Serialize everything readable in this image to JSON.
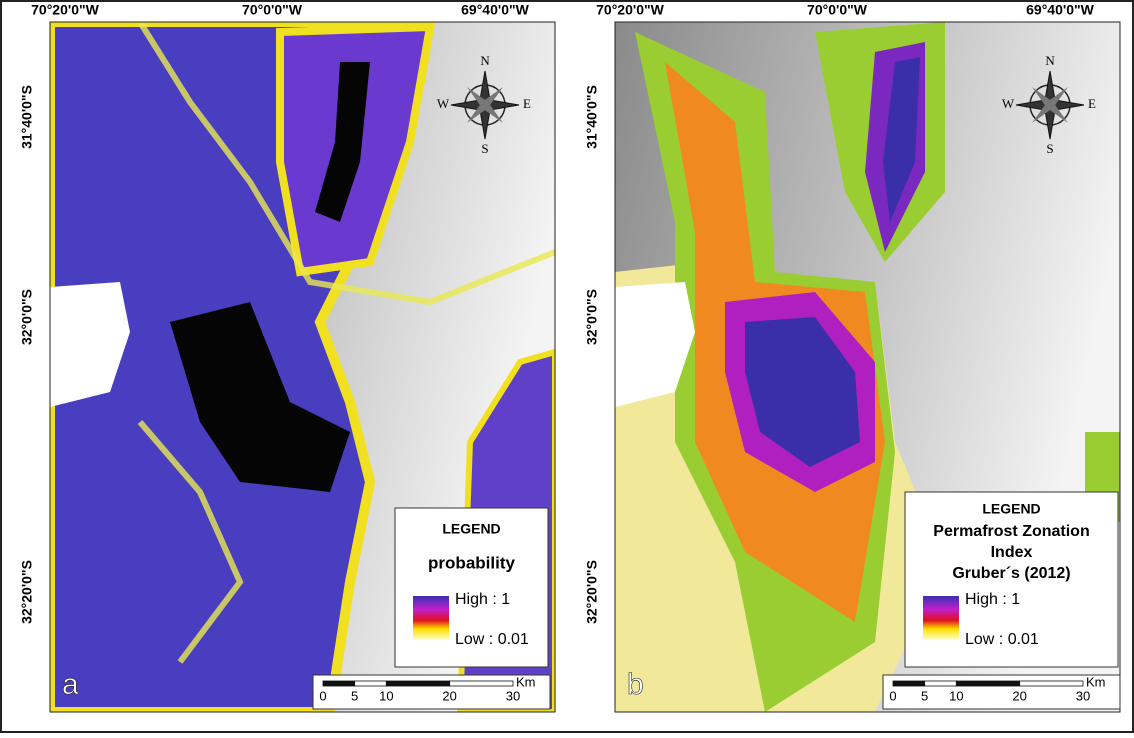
{
  "panels": [
    {
      "label": "a",
      "lon_labels": [
        "70°20'0\"W",
        "70°0'0\"W",
        "69°40'0\"W"
      ],
      "lat_labels": [
        "31°40'0\"S",
        "32°0'0\"S",
        "32°20'0\"S"
      ],
      "compass": {
        "n": "N",
        "e": "E",
        "s": "S",
        "w": "W"
      },
      "legend": {
        "title": "LEGEND",
        "name": [
          "probability"
        ],
        "high": "High : 1",
        "low": "Low : 0.01"
      },
      "scale_bar": {
        "ticks": [
          0,
          5,
          10,
          20,
          30
        ],
        "unit": "Km"
      }
    },
    {
      "label": "b",
      "lon_labels": [
        "70°20'0\"W",
        "70°0'0\"W",
        "69°40'0\"W"
      ],
      "lat_labels": [
        "31°40'0\"S",
        "32°0'0\"S",
        "32°20'0\"S"
      ],
      "compass": {
        "n": "N",
        "e": "E",
        "s": "S",
        "w": "W"
      },
      "legend": {
        "title": "LEGEND",
        "name": [
          "Permafrost Zonation",
          "Index",
          "Gruber´s (2012)"
        ],
        "high": "High : 1",
        "low": "Low : 0.01"
      },
      "scale_bar": {
        "ticks": [
          0,
          5,
          10,
          20,
          30
        ],
        "unit": "Km"
      }
    }
  ]
}
